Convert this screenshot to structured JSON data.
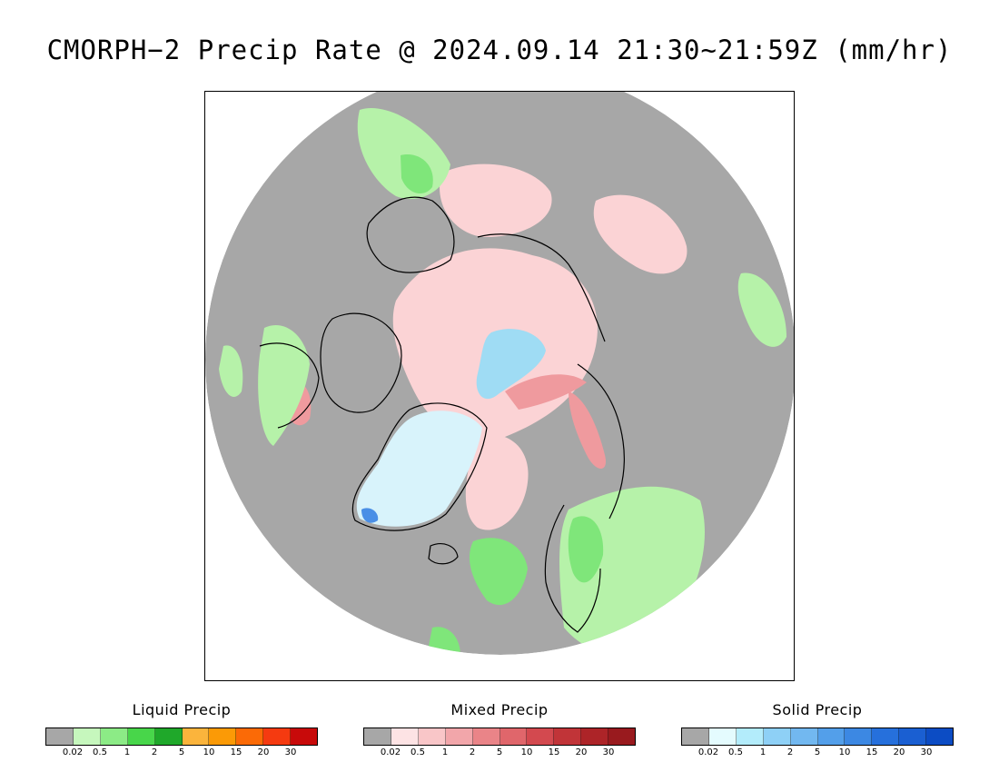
{
  "title": "CMORPH−2 Precip Rate @ 2024.09.14 21:30~21:59Z (mm/hr)",
  "map": {
    "projection": "north-polar-stereographic",
    "colors": {
      "no_precip": "#a7a7a7",
      "liquid_light": "#b6f2a9",
      "liquid_mid": "#7fe67a",
      "liquid_heavy": "#2ec33a",
      "mixed_light": "#fbd3d5",
      "mixed_mid": "#ef9a9e",
      "mixed_heavy": "#d9575e",
      "solid_light": "#d8f3fb",
      "solid_mid": "#9fdcf4",
      "solid_heavy": "#4a8fe6",
      "coastline": "#000000"
    }
  },
  "legends": [
    {
      "id": "liquid",
      "title": "Liquid Precip",
      "ticks": [
        "0.02",
        "0.5",
        "1",
        "2",
        "5",
        "10",
        "15",
        "20",
        "30"
      ],
      "colors": [
        "#a7a7a7",
        "#c6f7bd",
        "#8ceb86",
        "#48d64a",
        "#1fa82a",
        "#fbb43c",
        "#fb9a06",
        "#fb6a06",
        "#f53a10",
        "#c80a0a"
      ]
    },
    {
      "id": "mixed",
      "title": "Mixed Precip",
      "ticks": [
        "0.02",
        "0.5",
        "1",
        "2",
        "5",
        "10",
        "15",
        "20",
        "30"
      ],
      "colors": [
        "#a7a7a7",
        "#fde3e4",
        "#f9c6c8",
        "#f2a6aa",
        "#ea8488",
        "#e0666b",
        "#d3494f",
        "#c13438",
        "#ad2428",
        "#991a1e"
      ]
    },
    {
      "id": "solid",
      "title": "Solid Precip",
      "ticks": [
        "0.02",
        "0.5",
        "1",
        "2",
        "5",
        "10",
        "15",
        "20",
        "30"
      ],
      "colors": [
        "#a7a7a7",
        "#e4fbfe",
        "#b3ecfb",
        "#8ed0f6",
        "#72b8f0",
        "#539fea",
        "#3c88e3",
        "#2670dc",
        "#1a5fd2",
        "#0c4cc4"
      ]
    }
  ]
}
